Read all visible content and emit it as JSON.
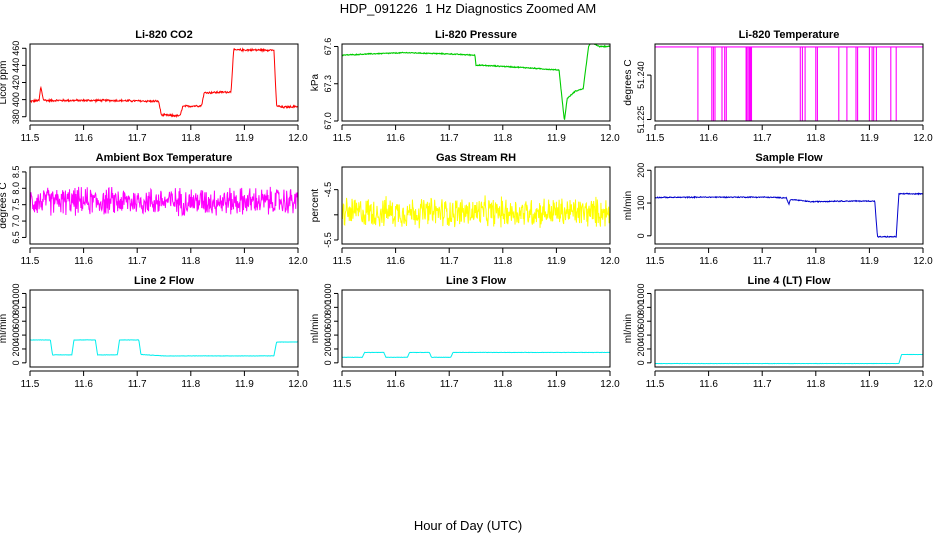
{
  "page": {
    "title": "HDP_091226  1 Hz Diagnostics Zoomed AM",
    "xlabel": "Hour of Day (UTC)"
  },
  "chart_data": [
    {
      "type": "line",
      "title": "Li-820 CO2",
      "ylabel": "Licor ppm",
      "xlim": [
        11.5,
        12.0
      ],
      "ylim": [
        375,
        465
      ],
      "color": "#ff0000",
      "noise": 1.5,
      "xticks": [
        "11.5",
        "11.6",
        "11.7",
        "11.8",
        "11.9",
        "12.0"
      ],
      "yticks": [
        380,
        400,
        420,
        440,
        460
      ],
      "x": [
        11.5,
        11.517,
        11.52,
        11.525,
        11.53,
        11.6,
        11.65,
        11.74,
        11.745,
        11.78,
        11.785,
        11.82,
        11.825,
        11.875,
        11.88,
        11.955,
        11.96,
        11.97,
        12.0
      ],
      "values": [
        398,
        399,
        415,
        400,
        399,
        399,
        399,
        398,
        382,
        381,
        392,
        393,
        408,
        409,
        458,
        458,
        393,
        391,
        392
      ]
    },
    {
      "type": "line",
      "title": "Li-820 Pressure",
      "ylabel": "kPa",
      "xlim": [
        11.5,
        12.0
      ],
      "ylim": [
        67.0,
        67.62
      ],
      "color": "#00cc00",
      "noise": 0.005,
      "xticks": [
        "11.5",
        "11.6",
        "11.7",
        "11.8",
        "11.9",
        "12.0"
      ],
      "yticks": [
        67.0,
        67.3,
        67.6
      ],
      "ytick_labels": [
        "67.0",
        "67.3",
        "67.6"
      ],
      "x": [
        11.5,
        11.55,
        11.62,
        11.7,
        11.748,
        11.75,
        11.8,
        11.84,
        11.905,
        11.91,
        11.915,
        11.92,
        11.935,
        11.95,
        11.96,
        11.965,
        11.98,
        12.0
      ],
      "values": [
        67.53,
        67.54,
        67.55,
        67.54,
        67.53,
        67.45,
        67.44,
        67.43,
        67.41,
        67.2,
        67.0,
        67.18,
        67.24,
        67.26,
        67.6,
        67.63,
        67.6,
        67.6
      ]
    },
    {
      "type": "line",
      "title": "Li-820 Temperature",
      "ylabel": "degrees C",
      "xlim": [
        11.5,
        12.0
      ],
      "ylim": [
        51.2245,
        51.2505
      ],
      "color": "#ff00ff",
      "noise": 0,
      "xticks": [
        "11.5",
        "11.6",
        "11.7",
        "11.8",
        "11.9",
        "12.0"
      ],
      "yticks": [
        51.225,
        51.24
      ],
      "ytick_labels": [
        "51.225",
        "51.240"
      ],
      "baseline": 51.2495,
      "low": 51.2245,
      "spikes": [
        11.58,
        11.606,
        11.609,
        11.612,
        11.625,
        11.63,
        11.633,
        11.67,
        11.672,
        11.675,
        11.677,
        11.679,
        11.68,
        11.771,
        11.775,
        11.78,
        11.8,
        11.803,
        11.843,
        11.858,
        11.875,
        11.878,
        11.9,
        11.905,
        11.908,
        11.913,
        11.94,
        11.95
      ]
    },
    {
      "type": "line",
      "title": "Ambient Box Temperature",
      "ylabel": "degrees C",
      "xlim": [
        11.5,
        12.0
      ],
      "ylim": [
        6.3,
        8.65
      ],
      "color": "#ff00ff",
      "noise": 0.5,
      "xticks": [
        "11.5",
        "11.6",
        "11.7",
        "11.8",
        "11.9",
        "12.0"
      ],
      "yticks": [
        6.5,
        7.0,
        7.5,
        8.0,
        8.5
      ],
      "ytick_labels": [
        "6.5",
        "7.0",
        "7.5",
        "8.0",
        "8.5"
      ],
      "x": [
        11.5,
        12.0
      ],
      "values": [
        7.6,
        7.6
      ]
    },
    {
      "type": "line",
      "title": "Gas Stream RH",
      "ylabel": "percent",
      "xlim": [
        11.5,
        12.0
      ],
      "ylim": [
        -5.58,
        -4.05
      ],
      "color": "#ffff00",
      "noise": 0.35,
      "xticks": [
        "11.5",
        "11.6",
        "11.7",
        "11.8",
        "11.9",
        "12.0"
      ],
      "yticks": [
        -5.5,
        -5.0,
        -4.5
      ],
      "ytick_labels": [
        "-5.5",
        "",
        "-4.5"
      ],
      "x": [
        11.5,
        12.0
      ],
      "values": [
        -4.95,
        -4.95
      ]
    },
    {
      "type": "line",
      "title": "Sample Flow",
      "ylabel": "ml/min",
      "xlim": [
        11.5,
        12.0
      ],
      "ylim": [
        -25,
        210
      ],
      "color": "#0000cc",
      "noise": 2,
      "xticks": [
        "11.5",
        "11.6",
        "11.7",
        "11.8",
        "11.9",
        "12.0"
      ],
      "yticks": [
        0,
        100,
        200
      ],
      "x": [
        11.5,
        11.6,
        11.7,
        11.745,
        11.75,
        11.752,
        11.76,
        11.79,
        11.84,
        11.91,
        11.915,
        11.95,
        11.955,
        12.0
      ],
      "values": [
        117,
        118,
        118,
        116,
        95,
        110,
        110,
        104,
        106,
        106,
        -3,
        -3,
        128,
        128
      ]
    },
    {
      "type": "line",
      "title": "Line 2 Flow",
      "ylabel": "ml/min",
      "xlim": [
        11.5,
        12.0
      ],
      "ylim": [
        -60,
        1050
      ],
      "color": "#00eeee",
      "noise": 3,
      "xticks": [
        "11.5",
        "11.6",
        "11.7",
        "11.8",
        "11.9",
        "12.0"
      ],
      "yticks": [
        0,
        200,
        400,
        600,
        800,
        1000
      ],
      "x": [
        11.5,
        11.538,
        11.542,
        11.578,
        11.582,
        11.622,
        11.626,
        11.663,
        11.667,
        11.703,
        11.707,
        11.75,
        11.8,
        11.955,
        11.96,
        12.0
      ],
      "values": [
        330,
        330,
        115,
        115,
        330,
        330,
        115,
        115,
        330,
        330,
        120,
        100,
        100,
        100,
        300,
        300
      ]
    },
    {
      "type": "line",
      "title": "Line 3 Flow",
      "ylabel": "ml/min",
      "xlim": [
        11.5,
        12.0
      ],
      "ylim": [
        -60,
        1050
      ],
      "color": "#00eeee",
      "noise": 3,
      "xticks": [
        "11.5",
        "11.6",
        "11.7",
        "11.8",
        "11.9",
        "12.0"
      ],
      "yticks": [
        0,
        200,
        400,
        600,
        800,
        1000
      ],
      "x": [
        11.5,
        11.538,
        11.542,
        11.578,
        11.582,
        11.622,
        11.626,
        11.663,
        11.667,
        11.703,
        11.707,
        12.0
      ],
      "values": [
        80,
        80,
        150,
        150,
        80,
        80,
        150,
        150,
        80,
        80,
        150,
        150
      ]
    },
    {
      "type": "line",
      "title": "Line 4 (LT) Flow",
      "ylabel": "ml/min",
      "xlim": [
        11.5,
        12.0
      ],
      "ylim": [
        -60,
        1050
      ],
      "color": "#00eeee",
      "noise": 2,
      "xticks": [
        "11.5",
        "11.6",
        "11.7",
        "11.8",
        "11.9",
        "12.0"
      ],
      "yticks": [
        0,
        200,
        400,
        600,
        800,
        1000
      ],
      "x": [
        11.5,
        11.955,
        11.96,
        12.0
      ],
      "values": [
        -10,
        -10,
        120,
        120
      ]
    }
  ]
}
